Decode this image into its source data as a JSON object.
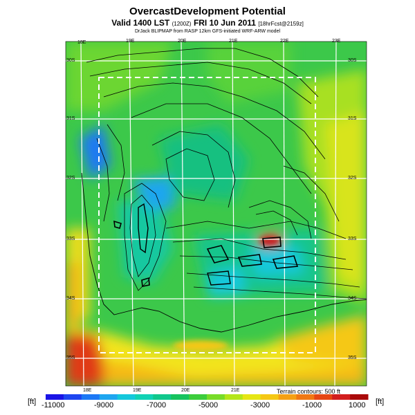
{
  "header": {
    "title": "OvercastDevelopment Potential",
    "valid_main": "Valid 1400 LST",
    "valid_time_code": "(1200Z)",
    "valid_date": "FRI 10 Jun 2011",
    "forecast_tag": "[18hrFcst@2159z]",
    "credit": "DrJack BLIPMAP from RASP 12km GFS-initiated WRF-ARW model"
  },
  "map": {
    "lon_top": [
      "18E",
      "19E",
      "20E",
      "21E",
      "22E",
      "23E"
    ],
    "lon_bottom": [
      "18E",
      "19E",
      "20E",
      "21E"
    ],
    "lat_left": [
      "30S",
      "31S",
      "32S",
      "33S",
      "34S",
      "35S"
    ],
    "lat_right": [
      "30S",
      "31S",
      "32S",
      "33S",
      "34S",
      "35S"
    ]
  },
  "legend": {
    "unit": "[ft]",
    "terrain_note": "Terrain contours: 500 ft",
    "ticks": [
      "-11000",
      "-9000",
      "-7000",
      "-5000",
      "-3000",
      "-1000",
      "1000"
    ],
    "colors": [
      "#1a14e6",
      "#1e46f0",
      "#1c78f5",
      "#1ea6f0",
      "#14c8dc",
      "#10d2b4",
      "#10c88c",
      "#16c35e",
      "#3ccd3c",
      "#78dc28",
      "#b4e619",
      "#e6e614",
      "#f5c814",
      "#f5a014",
      "#f07814",
      "#e64614",
      "#d21e1e",
      "#aa0a0a"
    ]
  }
}
